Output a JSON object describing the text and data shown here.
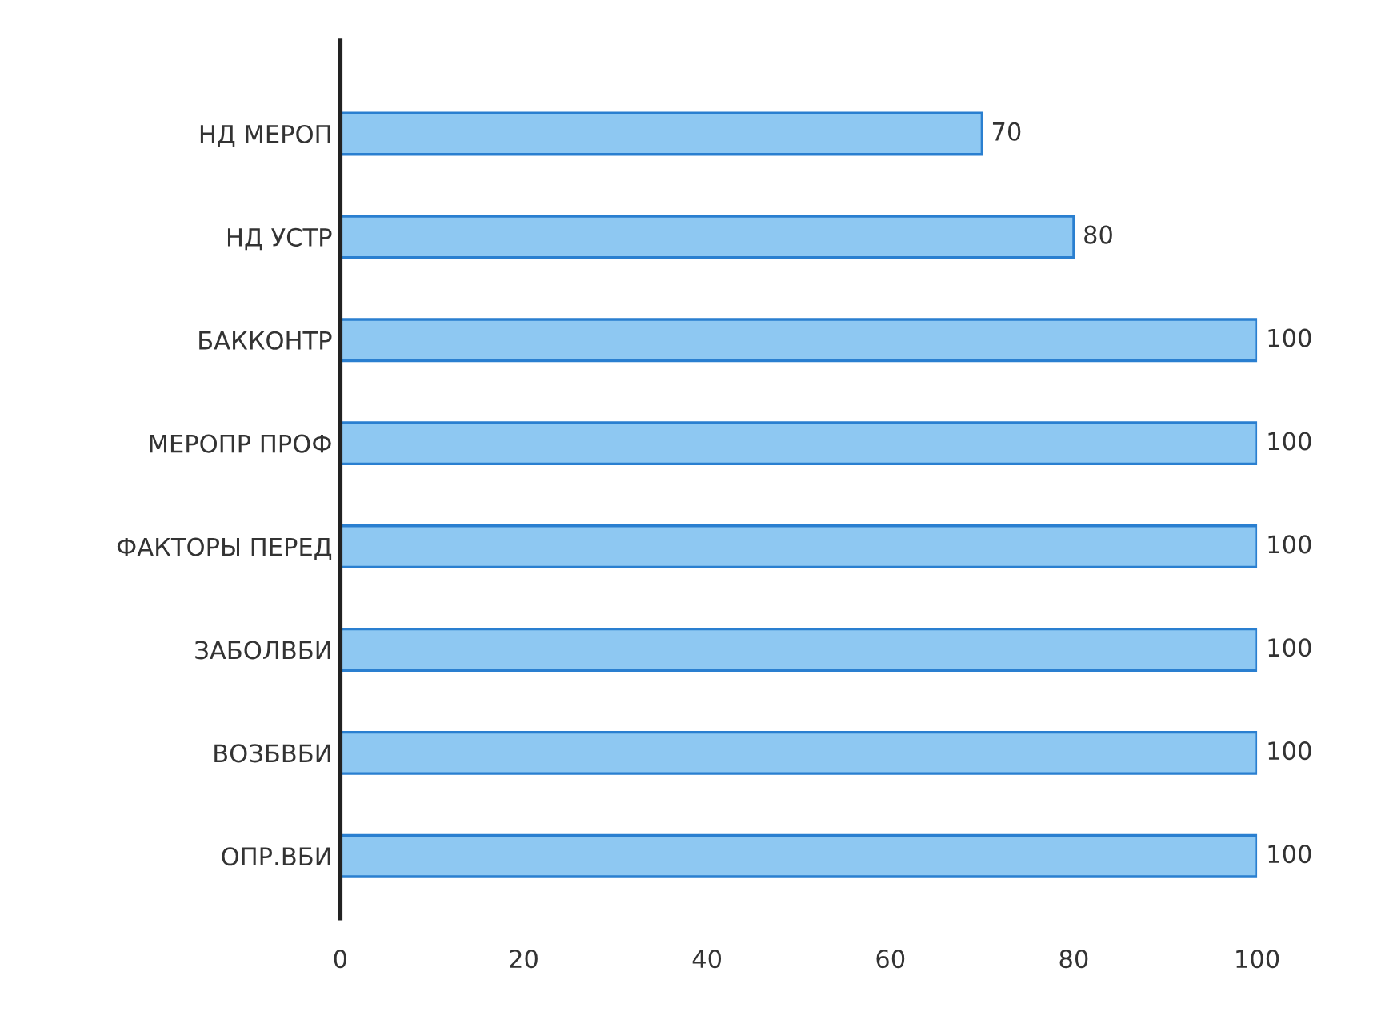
{
  "chart_data": {
    "type": "bar",
    "orientation": "horizontal",
    "categories": [
      "НД МЕРОП",
      "НД УСТР",
      "БАККОНТР",
      "МЕРОПР ПРОФ",
      "ФАКТОРЫ ПЕРЕД",
      "ЗАБОЛВБИ",
      "ВОЗБВБИ",
      "ОПР.ВБИ"
    ],
    "values": [
      70,
      80,
      100,
      100,
      100,
      100,
      100,
      100
    ],
    "color": "#8ec8f2",
    "xlim": [
      0,
      100
    ],
    "xticks": [
      0,
      20,
      40,
      60,
      80,
      100
    ],
    "data_labels": true,
    "grid": false,
    "legend": false
  }
}
